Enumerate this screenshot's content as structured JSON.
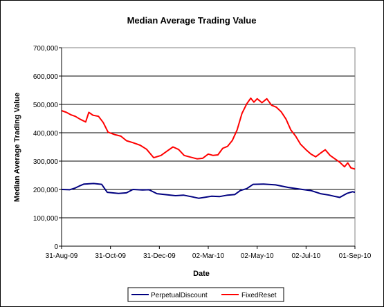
{
  "chart_data": {
    "type": "line",
    "title": "Median Average Trading Value",
    "xlabel": "Date",
    "ylabel": "Median Average Trading Value",
    "ylim": [
      0,
      700000
    ],
    "y_ticks": [
      "0",
      "100,000",
      "200,000",
      "300,000",
      "400,000",
      "500,000",
      "600,000",
      "700,000"
    ],
    "y_tick_values": [
      0,
      100000,
      200000,
      300000,
      400000,
      500000,
      600000,
      700000
    ],
    "x_tick_labels": [
      "31-Aug-09",
      "31-Oct-09",
      "31-Dec-09",
      "02-Mar-10",
      "02-May-10",
      "02-Jul-10",
      "01-Sep-10"
    ],
    "x_tick_dates": [
      "2009-08-31",
      "2009-10-31",
      "2009-12-31",
      "2010-03-02",
      "2010-05-02",
      "2010-07-02",
      "2010-09-01"
    ],
    "xlim": [
      "2009-08-31",
      "2010-09-01"
    ],
    "grid": "horizontal",
    "legend_position": "bottom",
    "series": [
      {
        "name": "PerpetualDiscount",
        "color": "#000080",
        "points": [
          [
            "2009-08-31",
            200000
          ],
          [
            "2009-09-10",
            199000
          ],
          [
            "2009-09-17",
            205000
          ],
          [
            "2009-09-22",
            212000
          ],
          [
            "2009-09-28",
            219000
          ],
          [
            "2009-10-10",
            221000
          ],
          [
            "2009-10-20",
            218000
          ],
          [
            "2009-10-27",
            190000
          ],
          [
            "2009-11-10",
            186000
          ],
          [
            "2009-11-20",
            188000
          ],
          [
            "2009-11-28",
            200000
          ],
          [
            "2009-12-10",
            198000
          ],
          [
            "2009-12-18",
            199000
          ],
          [
            "2009-12-28",
            185000
          ],
          [
            "2010-01-10",
            181000
          ],
          [
            "2010-01-20",
            178000
          ],
          [
            "2010-01-30",
            180000
          ],
          [
            "2010-02-10",
            174000
          ],
          [
            "2010-02-18",
            169000
          ],
          [
            "2010-02-25",
            172000
          ],
          [
            "2010-03-06",
            176000
          ],
          [
            "2010-03-16",
            175000
          ],
          [
            "2010-03-26",
            180000
          ],
          [
            "2010-04-04",
            182000
          ],
          [
            "2010-04-11",
            196000
          ],
          [
            "2010-04-19",
            203000
          ],
          [
            "2010-04-27",
            218000
          ],
          [
            "2010-05-10",
            219000
          ],
          [
            "2010-05-25",
            216000
          ],
          [
            "2010-06-10",
            207000
          ],
          [
            "2010-06-25",
            201000
          ],
          [
            "2010-07-08",
            196000
          ],
          [
            "2010-07-20",
            185000
          ],
          [
            "2010-07-31",
            180000
          ],
          [
            "2010-08-06",
            176000
          ],
          [
            "2010-08-13",
            172000
          ],
          [
            "2010-08-22",
            186000
          ],
          [
            "2010-08-29",
            192000
          ],
          [
            "2010-09-01",
            190000
          ]
        ]
      },
      {
        "name": "FixedReset",
        "color": "#ff0000",
        "points": [
          [
            "2009-08-31",
            478000
          ],
          [
            "2009-09-06",
            472000
          ],
          [
            "2009-09-12",
            463000
          ],
          [
            "2009-09-17",
            458000
          ],
          [
            "2009-09-23",
            448000
          ],
          [
            "2009-09-30",
            438000
          ],
          [
            "2009-10-04",
            472000
          ],
          [
            "2009-10-09",
            462000
          ],
          [
            "2009-10-16",
            458000
          ],
          [
            "2009-10-22",
            436000
          ],
          [
            "2009-10-28",
            402000
          ],
          [
            "2009-11-06",
            393000
          ],
          [
            "2009-11-13",
            388000
          ],
          [
            "2009-11-20",
            372000
          ],
          [
            "2009-11-28",
            365000
          ],
          [
            "2009-12-07",
            356000
          ],
          [
            "2009-12-15",
            342000
          ],
          [
            "2009-12-24",
            312000
          ],
          [
            "2010-01-02",
            320000
          ],
          [
            "2010-01-10",
            336000
          ],
          [
            "2010-01-17",
            350000
          ],
          [
            "2010-01-24",
            341000
          ],
          [
            "2010-01-31",
            320000
          ],
          [
            "2010-02-08",
            314000
          ],
          [
            "2010-02-16",
            308000
          ],
          [
            "2010-02-23",
            310000
          ],
          [
            "2010-03-02",
            325000
          ],
          [
            "2010-03-08",
            320000
          ],
          [
            "2010-03-14",
            322000
          ],
          [
            "2010-03-20",
            345000
          ],
          [
            "2010-03-26",
            352000
          ],
          [
            "2010-04-01",
            373000
          ],
          [
            "2010-04-07",
            410000
          ],
          [
            "2010-04-13",
            468000
          ],
          [
            "2010-04-19",
            502000
          ],
          [
            "2010-04-24",
            522000
          ],
          [
            "2010-04-28",
            508000
          ],
          [
            "2010-05-02",
            520000
          ],
          [
            "2010-05-08",
            506000
          ],
          [
            "2010-05-14",
            520000
          ],
          [
            "2010-05-20",
            497000
          ],
          [
            "2010-05-26",
            490000
          ],
          [
            "2010-06-01",
            474000
          ],
          [
            "2010-06-07",
            448000
          ],
          [
            "2010-06-13",
            410000
          ],
          [
            "2010-06-19",
            388000
          ],
          [
            "2010-06-25",
            360000
          ],
          [
            "2010-07-02",
            340000
          ],
          [
            "2010-07-08",
            325000
          ],
          [
            "2010-07-14",
            315000
          ],
          [
            "2010-07-20",
            328000
          ],
          [
            "2010-07-26",
            340000
          ],
          [
            "2010-08-01",
            320000
          ],
          [
            "2010-08-07",
            308000
          ],
          [
            "2010-08-13",
            296000
          ],
          [
            "2010-08-19",
            280000
          ],
          [
            "2010-08-23",
            294000
          ],
          [
            "2010-08-27",
            276000
          ],
          [
            "2010-09-01",
            272000
          ]
        ]
      }
    ]
  }
}
